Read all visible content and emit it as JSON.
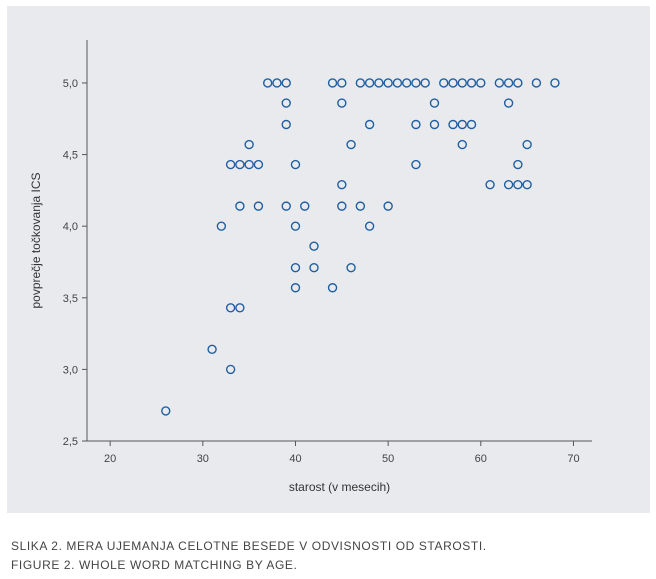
{
  "captions": {
    "sl": "SLIKA 2. MERA UJEMANJA CELOTNE BESEDE V ODVISNOSTI OD STAROSTI.",
    "en": "FIGURE 2. WHOLE WORD MATCHING BY AGE."
  },
  "colors": {
    "panel_background": "#e9eaee",
    "marker": "#1f5fa0",
    "axis": "#555555"
  },
  "chart_data": {
    "type": "scatter",
    "title": "",
    "xlabel": "starost (v mesecih)",
    "ylabel": "povprečje točkovanja ICS",
    "xlim": [
      17.5,
      72
    ],
    "ylim": [
      2.5,
      5.3
    ],
    "x_ticks": [
      20,
      30,
      40,
      50,
      60,
      70
    ],
    "y_ticks": [
      2.5,
      3.0,
      3.5,
      4.0,
      4.5,
      5.0
    ],
    "x_tick_labels": [
      "20",
      "30",
      "40",
      "50",
      "60",
      "70"
    ],
    "y_tick_labels": [
      "2,5",
      "3,0",
      "3,5",
      "4,0",
      "4,5",
      "5,0"
    ],
    "grid": false,
    "marker": "hollow circle",
    "points": [
      [
        26,
        2.71
      ],
      [
        31,
        3.14
      ],
      [
        33,
        3.0
      ],
      [
        33,
        3.43
      ],
      [
        34,
        3.43
      ],
      [
        32,
        4.0
      ],
      [
        33,
        4.43
      ],
      [
        34,
        4.43
      ],
      [
        35,
        4.43
      ],
      [
        36,
        4.43
      ],
      [
        35,
        4.57
      ],
      [
        34,
        4.14
      ],
      [
        36,
        4.14
      ],
      [
        37,
        5.0
      ],
      [
        38,
        5.0
      ],
      [
        39,
        5.0
      ],
      [
        39,
        4.86
      ],
      [
        39,
        4.71
      ],
      [
        39,
        4.14
      ],
      [
        41,
        4.14
      ],
      [
        40,
        4.43
      ],
      [
        40,
        4.0
      ],
      [
        40,
        3.71
      ],
      [
        40,
        3.57
      ],
      [
        42,
        3.86
      ],
      [
        42,
        3.71
      ],
      [
        44,
        3.57
      ],
      [
        44,
        5.0
      ],
      [
        45,
        5.0
      ],
      [
        45,
        4.86
      ],
      [
        45,
        4.29
      ],
      [
        45,
        4.14
      ],
      [
        46,
        4.57
      ],
      [
        46,
        3.71
      ],
      [
        47,
        4.14
      ],
      [
        47,
        5.0
      ],
      [
        48,
        5.0
      ],
      [
        48,
        4.71
      ],
      [
        48,
        4.0
      ],
      [
        49,
        5.0
      ],
      [
        50,
        5.0
      ],
      [
        50,
        4.14
      ],
      [
        51,
        5.0
      ],
      [
        52,
        5.0
      ],
      [
        53,
        5.0
      ],
      [
        54,
        5.0
      ],
      [
        53,
        4.71
      ],
      [
        53,
        4.43
      ],
      [
        55,
        4.86
      ],
      [
        55,
        4.71
      ],
      [
        56,
        5.0
      ],
      [
        57,
        5.0
      ],
      [
        58,
        5.0
      ],
      [
        59,
        5.0
      ],
      [
        60,
        5.0
      ],
      [
        57,
        4.71
      ],
      [
        58,
        4.71
      ],
      [
        59,
        4.71
      ],
      [
        58,
        4.57
      ],
      [
        61,
        4.29
      ],
      [
        62,
        5.0
      ],
      [
        63,
        5.0
      ],
      [
        64,
        5.0
      ],
      [
        63,
        4.86
      ],
      [
        63,
        4.29
      ],
      [
        64,
        4.29
      ],
      [
        65,
        4.29
      ],
      [
        64,
        4.43
      ],
      [
        65,
        4.57
      ],
      [
        66,
        5.0
      ],
      [
        68,
        5.0
      ]
    ]
  }
}
